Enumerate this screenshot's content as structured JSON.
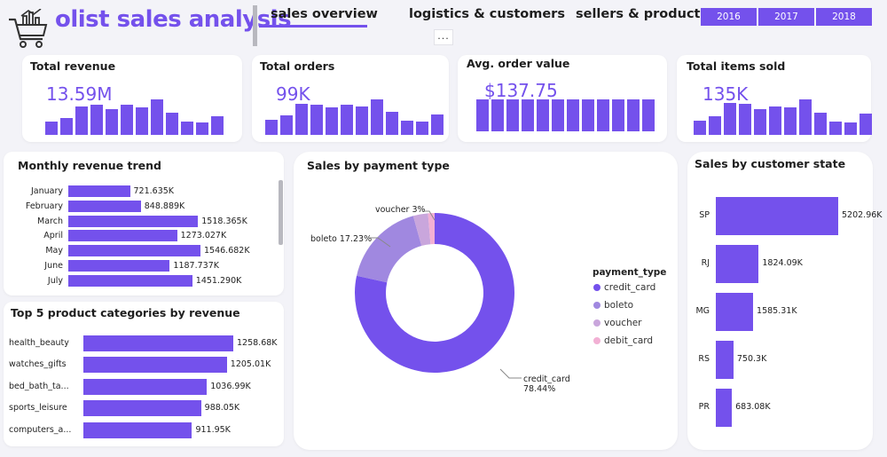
{
  "header": {
    "app_title": "olist sales analysis",
    "tabs": [
      {
        "label": "sales overview"
      },
      {
        "label": "logistics & customers"
      },
      {
        "label": "sellers & products"
      }
    ],
    "more_label": "...",
    "years": [
      "2016",
      "2017",
      "2018"
    ],
    "accent": "#7451ec"
  },
  "kpis": [
    {
      "title": "Total revenue",
      "value": "13.59M",
      "spark": [
        14,
        18,
        30,
        32,
        28,
        32,
        29,
        38,
        24,
        14,
        13,
        20
      ]
    },
    {
      "title": "Total orders",
      "value": "99K",
      "spark": [
        15,
        19,
        31,
        30,
        27,
        30,
        28,
        35,
        23,
        14,
        13,
        20
      ]
    },
    {
      "title": "Avg. order value",
      "value": "$137.75",
      "spark": [
        29,
        29,
        29,
        29,
        29,
        29,
        29,
        29,
        29,
        29,
        29,
        29
      ]
    },
    {
      "title": "Total items sold",
      "value": "135K",
      "spark": [
        15,
        19,
        33,
        32,
        27,
        30,
        29,
        37,
        23,
        14,
        13,
        22
      ]
    }
  ],
  "monthly": {
    "title": "Monthly revenue trend",
    "rows": [
      {
        "label": "January",
        "value": 721.635,
        "display": "721.635K"
      },
      {
        "label": "February",
        "value": 848.889,
        "display": "848.889K"
      },
      {
        "label": "March",
        "value": 1518.365,
        "display": "1518.365K"
      },
      {
        "label": "April",
        "value": 1273.027,
        "display": "1273.027K"
      },
      {
        "label": "May",
        "value": 1546.682,
        "display": "1546.682K"
      },
      {
        "label": "June",
        "value": 1187.737,
        "display": "1187.737K"
      },
      {
        "label": "July",
        "value": 1451.29,
        "display": "1451.290K"
      }
    ]
  },
  "categories": {
    "title": "Top 5 product categories by revenue",
    "rows": [
      {
        "label": "health_beauty",
        "value": 1258.68,
        "display": "1258.68K"
      },
      {
        "label": "watches_gifts",
        "value": 1205.01,
        "display": "1205.01K"
      },
      {
        "label": "bed_bath_ta...",
        "value": 1036.99,
        "display": "1036.99K"
      },
      {
        "label": "sports_leisure",
        "value": 988.05,
        "display": "988.05K"
      },
      {
        "label": "computers_a...",
        "value": 911.95,
        "display": "911.95K"
      }
    ]
  },
  "payment": {
    "title": "Sales by payment type",
    "legend_title": "payment_type",
    "slices": [
      {
        "name": "credit_card",
        "pct": 78.44,
        "color": "#7451ec"
      },
      {
        "name": "boleto",
        "pct": 17.23,
        "color": "#a088e0"
      },
      {
        "name": "voucher",
        "pct": 3.0,
        "color": "#c9a6dc"
      },
      {
        "name": "debit_card",
        "pct": 1.33,
        "color": "#f2b0d4"
      }
    ],
    "labels": {
      "voucher": "voucher 3%",
      "boleto": "boleto 17.23%",
      "credit_name": "credit_card",
      "credit_pct": "78.44%"
    }
  },
  "states": {
    "title": "Sales by customer state",
    "rows": [
      {
        "label": "SP",
        "value": 5202.96,
        "display": "5202.96K"
      },
      {
        "label": "RJ",
        "value": 1824.09,
        "display": "1824.09K"
      },
      {
        "label": "MG",
        "value": 1585.31,
        "display": "1585.31K"
      },
      {
        "label": "RS",
        "value": 750.3,
        "display": "750.3K"
      },
      {
        "label": "PR",
        "value": 683.08,
        "display": "683.08K"
      }
    ]
  }
}
